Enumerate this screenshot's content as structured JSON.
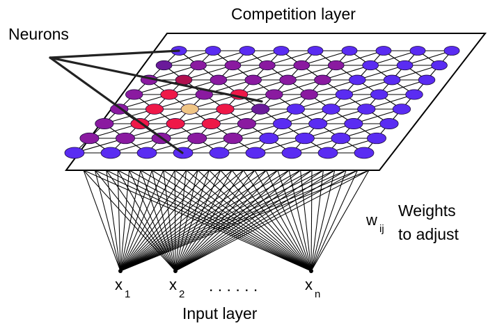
{
  "labels": {
    "competition_layer": "Competition layer",
    "neurons": "Neurons",
    "weights_symbol": "w",
    "weights_subscript": "ij",
    "weights_line1": "Weights",
    "weights_line2": "to adjust",
    "input_layer": "Input layer",
    "input_x1": "x",
    "input_x1_sub": "1",
    "input_x2": "x",
    "input_x2_sub": "2",
    "input_dots": ". . . . . .",
    "input_xn": "x",
    "input_xn_sub": "n"
  },
  "colors": {
    "blue": "#5a2cf2",
    "purple_deep": "#6a1a9a",
    "purple": "#8a1aa0",
    "magenta": "#b0104e",
    "red": "#ee1848",
    "winner": "#f0c585",
    "line": "#000000"
  },
  "grid": {
    "rows": [
      [
        "blue",
        "blue",
        "blue",
        "blue",
        "blue",
        "blue",
        "blue",
        "blue",
        "blue"
      ],
      [
        "purple_deep",
        "purple",
        "purple",
        "purple",
        "purple",
        "purple",
        "blue",
        "blue",
        "blue"
      ],
      [
        "purple",
        "magenta",
        "purple",
        "purple",
        "purple",
        "purple",
        "blue",
        "blue",
        "blue"
      ],
      [
        "purple",
        "red",
        "purple",
        "red",
        "purple",
        "purple",
        "blue",
        "blue",
        "blue"
      ],
      [
        "purple",
        "red",
        "winner",
        "red",
        "purple_deep",
        "blue",
        "blue",
        "blue",
        "blue"
      ],
      [
        "purple",
        "red",
        "red",
        "red",
        "purple",
        "blue",
        "blue",
        "blue",
        "blue"
      ],
      [
        "purple",
        "purple",
        "purple",
        "purple",
        "purple",
        "blue",
        "blue",
        "blue",
        "blue"
      ],
      [
        "blue",
        "blue",
        "blue",
        "blue",
        "blue",
        "blue",
        "blue",
        "blue",
        "blue"
      ]
    ]
  }
}
